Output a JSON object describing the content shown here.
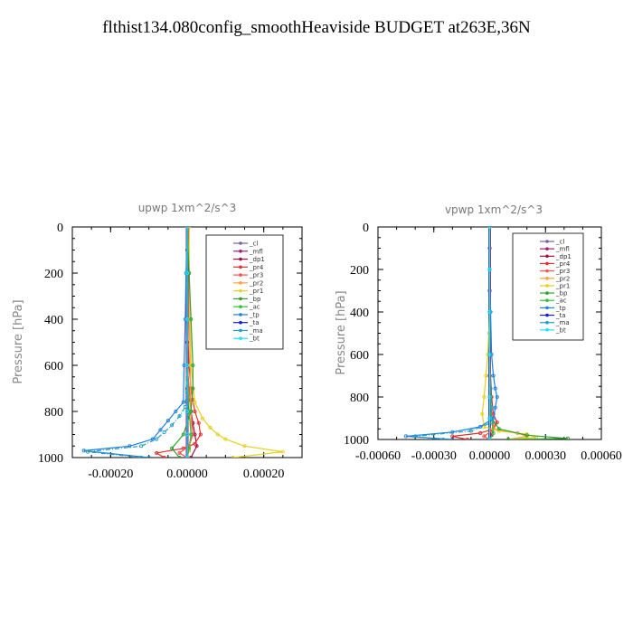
{
  "title": "flthist134.080config_smoothHeaviside  BUDGET at263E,36N",
  "legend_entries": [
    {
      "name": "_cl",
      "color": "#7f5fa0",
      "marker": "+"
    },
    {
      "name": "_mfl",
      "color": "#9b1f7b",
      "marker": "+"
    },
    {
      "name": "_dp1",
      "color": "#a01040",
      "marker": "o"
    },
    {
      "name": "_pr4",
      "color": "#e03030",
      "marker": "o"
    },
    {
      "name": "_pr3",
      "color": "#ff5050",
      "marker": "v"
    },
    {
      "name": "_pr2",
      "color": "#ffa040",
      "marker": "^"
    },
    {
      "name": "_pr1",
      "color": "#e8d020",
      "marker": "s"
    },
    {
      "name": "_bp",
      "color": "#30a030",
      "marker": "x"
    },
    {
      "name": "_ac",
      "color": "#30c030",
      "marker": "o"
    },
    {
      "name": "_tp",
      "color": "#2080e0",
      "marker": "*"
    },
    {
      "name": "_ta",
      "color": "#1020d0",
      "marker": "+"
    },
    {
      "name": "_ma",
      "color": "#20a0c0",
      "marker": "-"
    },
    {
      "name": "_bt",
      "color": "#20e0ff",
      "marker": "D"
    }
  ],
  "chart_data": [
    {
      "type": "line",
      "title": "upwp   1xm^2/s^3",
      "ylabel": "Pressure [hPa]",
      "xlabel": "",
      "xlim": [
        -0.0003,
        0.0003
      ],
      "ylim": [
        1000,
        0
      ],
      "xticks": [
        -0.0002,
        0.0,
        0.0002
      ],
      "xtick_labels": [
        "-0.00020",
        "0.00000",
        "0.00020"
      ],
      "yticks": [
        0,
        200,
        400,
        600,
        800,
        1000
      ],
      "ytick_labels": [
        "0",
        "200",
        "400",
        "600",
        "800",
        "1000"
      ],
      "legend_position": "top-right",
      "series": [
        {
          "name": "_cl",
          "color": "#7f5fa0",
          "x": [
            0,
            0,
            0,
            0,
            0,
            0,
            0,
            0,
            0,
            0,
            0
          ],
          "y": [
            0,
            100,
            200,
            300,
            400,
            500,
            600,
            700,
            800,
            900,
            1000
          ]
        },
        {
          "name": "_mfl",
          "color": "#9b1f7b",
          "x": [
            0,
            0,
            0,
            0,
            0,
            0,
            0,
            0,
            0,
            0,
            0
          ],
          "y": [
            0,
            100,
            200,
            300,
            400,
            500,
            600,
            700,
            800,
            900,
            1000
          ]
        },
        {
          "name": "_dp1",
          "color": "#a01040",
          "x": [
            0,
            0,
            0,
            0,
            5e-06,
            8e-06,
            1e-05,
            1.5e-05,
            2e-05,
            2.5e-05,
            1e-05
          ],
          "y": [
            0,
            200,
            400,
            600,
            700,
            750,
            800,
            850,
            900,
            950,
            1000
          ]
        },
        {
          "name": "_pr4",
          "color": "#e03030",
          "x": [
            0,
            0,
            0,
            5e-06,
            1e-05,
            1.5e-05,
            2e-05,
            3e-05,
            3.5e-05,
            2e-05,
            -1e-05,
            -8e-05,
            -6e-05
          ],
          "y": [
            0,
            200,
            400,
            600,
            700,
            750,
            800,
            850,
            900,
            940,
            960,
            980,
            1000
          ]
        },
        {
          "name": "_pr3",
          "color": "#ff5050",
          "x": [
            0,
            0,
            0,
            0,
            5e-06,
            1e-05,
            1.5e-05,
            5e-06,
            -2e-05,
            0
          ],
          "y": [
            0,
            200,
            400,
            600,
            700,
            800,
            900,
            950,
            980,
            1000
          ]
        },
        {
          "name": "_pr2",
          "color": "#ffa040",
          "x": [
            5e-06,
            5e-06,
            5e-06,
            8e-06,
            1e-05,
            1e-05,
            5e-06,
            0
          ],
          "y": [
            0,
            200,
            400,
            600,
            800,
            900,
            970,
            1000
          ]
        },
        {
          "name": "_pr1",
          "color": "#e8d020",
          "x": [
            5e-06,
            5e-06,
            8e-06,
            1e-05,
            2e-05,
            4e-05,
            6e-05,
            8e-05,
            0.0001,
            0.00015,
            0.00025,
            0.00012
          ],
          "y": [
            0,
            200,
            400,
            600,
            760,
            830,
            870,
            900,
            920,
            950,
            975,
            1000
          ]
        },
        {
          "name": "_bp",
          "color": "#30a030",
          "x": [
            0,
            5e-06,
            1e-05,
            1.5e-05,
            1.5e-05,
            1e-05,
            -1e-05,
            -4e-05,
            -2e-05
          ],
          "y": [
            0,
            200,
            400,
            600,
            700,
            800,
            900,
            960,
            1000
          ]
        },
        {
          "name": "_ac",
          "color": "#30c030",
          "x": [
            0,
            0,
            0,
            0,
            5e-06,
            1e-05,
            5e-06,
            0
          ],
          "y": [
            0,
            200,
            400,
            600,
            800,
            900,
            960,
            1000
          ]
        },
        {
          "name": "_tp",
          "color": "#2080e0",
          "x": [
            0,
            -3e-06,
            -5e-06,
            -8e-06,
            -1e-05,
            -3e-05,
            -5e-05,
            -7e-05,
            -9e-05,
            -0.00015,
            -0.00027,
            -0.0001
          ],
          "y": [
            0,
            200,
            400,
            600,
            760,
            800,
            840,
            880,
            920,
            950,
            970,
            1000
          ]
        },
        {
          "name": "_ta",
          "color": "#1020d0",
          "x": [
            0,
            0,
            0,
            0,
            0,
            0,
            0
          ],
          "y": [
            0,
            200,
            400,
            600,
            800,
            900,
            1000
          ]
        },
        {
          "name": "_ma",
          "color": "#20a0c0",
          "x": [
            0,
            0,
            0,
            0,
            -5e-06,
            -2e-05,
            -4e-05,
            -6e-05,
            -8e-05,
            -0.00012,
            -0.00026,
            -0.00012
          ],
          "y": [
            0,
            200,
            400,
            600,
            780,
            820,
            860,
            890,
            920,
            950,
            975,
            1000
          ]
        },
        {
          "name": "_bt",
          "color": "#20e0ff",
          "x": [
            0,
            0,
            0,
            0,
            0,
            0,
            0
          ],
          "y": [
            0,
            200,
            400,
            600,
            800,
            900,
            1000
          ]
        }
      ]
    },
    {
      "type": "line",
      "title": "vpwp   1xm^2/s^3",
      "ylabel": "Pressure [hPa]",
      "xlabel": "",
      "xlim": [
        -0.0006,
        0.0006
      ],
      "ylim": [
        1000,
        0
      ],
      "xticks": [
        -0.0006,
        -0.0003,
        0.0,
        0.0003,
        0.0006
      ],
      "xtick_labels": [
        "-0.00060",
        "-0.00030",
        "0.00000",
        "0.00030",
        "0.00060"
      ],
      "yticks": [
        0,
        200,
        400,
        600,
        800,
        1000
      ],
      "ytick_labels": [
        "0",
        "200",
        "400",
        "600",
        "800",
        "1000"
      ],
      "legend_position": "top-right",
      "series": [
        {
          "name": "_cl",
          "color": "#7f5fa0",
          "x": [
            0,
            0,
            0,
            0,
            0,
            0,
            0,
            0,
            0,
            0,
            0
          ],
          "y": [
            0,
            100,
            200,
            300,
            400,
            500,
            600,
            700,
            800,
            900,
            1000
          ]
        },
        {
          "name": "_mfl",
          "color": "#9b1f7b",
          "x": [
            0,
            0,
            0,
            0,
            0,
            0,
            0,
            0,
            0,
            0,
            0
          ],
          "y": [
            0,
            100,
            200,
            300,
            400,
            500,
            600,
            700,
            800,
            900,
            1000
          ]
        },
        {
          "name": "_dp1",
          "color": "#a01040",
          "x": [
            0,
            0,
            0,
            0,
            0,
            1e-05,
            2e-05,
            1e-05,
            0
          ],
          "y": [
            0,
            200,
            400,
            600,
            800,
            900,
            950,
            980,
            1000
          ]
        },
        {
          "name": "_pr4",
          "color": "#e03030",
          "x": [
            0,
            0,
            0,
            0,
            1e-05,
            2e-05,
            4e-05,
            2e-05,
            -5e-05,
            -0.0002,
            -0.00012
          ],
          "y": [
            0,
            200,
            400,
            600,
            800,
            880,
            920,
            950,
            970,
            985,
            1000
          ]
        },
        {
          "name": "_pr3",
          "color": "#ff5050",
          "x": [
            0,
            0,
            0,
            0,
            5e-06,
            1e-05,
            2e-05,
            1e-05,
            -3e-05,
            0
          ],
          "y": [
            0,
            200,
            400,
            600,
            800,
            880,
            930,
            960,
            985,
            1000
          ]
        },
        {
          "name": "_pr2",
          "color": "#ffa040",
          "x": [
            0,
            0,
            0,
            0,
            5e-06,
            1e-05,
            2e-05,
            0.00015,
            0.0002,
            0.0001
          ],
          "y": [
            0,
            200,
            400,
            600,
            800,
            900,
            950,
            970,
            985,
            1000
          ]
        },
        {
          "name": "_pr1",
          "color": "#e8d020",
          "x": [
            0,
            0,
            0,
            -1e-05,
            -2e-05,
            -3e-05,
            -4e-05,
            -3e-05,
            5e-05,
            0.0002,
            0.00025,
            0.0001
          ],
          "y": [
            0,
            200,
            400,
            600,
            700,
            800,
            880,
            940,
            960,
            975,
            990,
            1000
          ]
        },
        {
          "name": "_bp",
          "color": "#30a030",
          "x": [
            0,
            0,
            0,
            0,
            5e-06,
            1e-05,
            5e-05,
            0.0002,
            0.00042,
            0.0001
          ],
          "y": [
            0,
            200,
            400,
            600,
            800,
            900,
            950,
            980,
            995,
            1000
          ]
        },
        {
          "name": "_ac",
          "color": "#30c030",
          "x": [
            0,
            0,
            0,
            0,
            0,
            1e-05,
            2e-05,
            0
          ],
          "y": [
            0,
            200,
            400,
            600,
            800,
            900,
            970,
            1000
          ]
        },
        {
          "name": "_tp",
          "color": "#2080e0",
          "x": [
            0,
            0,
            5e-06,
            1e-05,
            2e-05,
            3e-05,
            4e-05,
            3e-05,
            2e-05,
            -5e-05,
            -0.0002,
            -0.00045,
            -0.0002
          ],
          "y": [
            0,
            200,
            400,
            600,
            700,
            760,
            800,
            850,
            900,
            940,
            965,
            985,
            1000
          ]
        },
        {
          "name": "_ta",
          "color": "#1020d0",
          "x": [
            0,
            0,
            0,
            0,
            0,
            0,
            0
          ],
          "y": [
            0,
            200,
            400,
            600,
            800,
            900,
            1000
          ]
        },
        {
          "name": "_ma",
          "color": "#20a0c0",
          "x": [
            0,
            0,
            0,
            0,
            5e-06,
            1e-05,
            1e-05,
            -0.0001,
            -0.0004,
            -0.00025
          ],
          "y": [
            0,
            200,
            400,
            600,
            760,
            850,
            920,
            960,
            985,
            1000
          ]
        },
        {
          "name": "_bt",
          "color": "#20e0ff",
          "x": [
            0,
            0,
            0,
            0,
            0,
            0,
            0
          ],
          "y": [
            0,
            200,
            400,
            600,
            800,
            900,
            1000
          ]
        }
      ]
    }
  ]
}
